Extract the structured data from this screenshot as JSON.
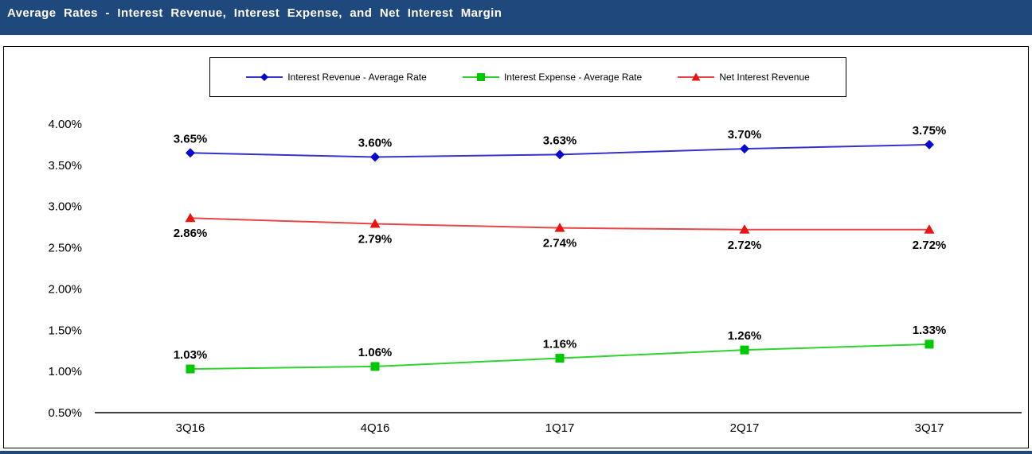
{
  "title_bar": {
    "title": "Average Rates - Interest Revenue, Interest Expense, and Net Interest Margin",
    "background": "#1F497D",
    "text_color": "#FFFFFF"
  },
  "chart_data": {
    "type": "line",
    "title": "Average Rates - Interest Revenue, Interest Expense, and Net Interest Margin",
    "categories": [
      "3Q16",
      "4Q16",
      "1Q17",
      "2Q17",
      "3Q17"
    ],
    "series": [
      {
        "name": "Interest Revenue - Average Rate",
        "values": [
          3.65,
          3.6,
          3.63,
          3.7,
          3.75
        ],
        "labels": [
          "3.65%",
          "3.60%",
          "3.63%",
          "3.70%",
          "3.75%"
        ],
        "line_color": "#3333CC",
        "marker_color": "#0909CE",
        "marker": "diamond",
        "label_position": "above"
      },
      {
        "name": "Interest Expense - Average Rate",
        "values": [
          1.03,
          1.06,
          1.16,
          1.26,
          1.33
        ],
        "labels": [
          "1.03%",
          "1.06%",
          "1.16%",
          "1.26%",
          "1.33%"
        ],
        "line_color": "#2FD32F",
        "marker_color": "#00C800",
        "marker": "square",
        "label_position": "above"
      },
      {
        "name": "Net Interest Revenue",
        "values": [
          2.86,
          2.79,
          2.74,
          2.72,
          2.72
        ],
        "labels": [
          "2.86%",
          "2.79%",
          "2.74%",
          "2.72%",
          "2.72%"
        ],
        "line_color": "#E84545",
        "marker_color": "#E81414",
        "marker": "triangle",
        "label_position": "below"
      }
    ],
    "y_axis": {
      "min": 0.5,
      "max": 4.0,
      "step": 0.5,
      "tick_labels_top_to_bottom": [
        "4.00%",
        "3.50%",
        "3.00%",
        "2.50%",
        "2.00%",
        "1.50%",
        "1.00%",
        "0.50%"
      ]
    },
    "xlabel": "",
    "ylabel": "",
    "grid": false,
    "legend_position": "top",
    "axis_color": "#000000"
  }
}
